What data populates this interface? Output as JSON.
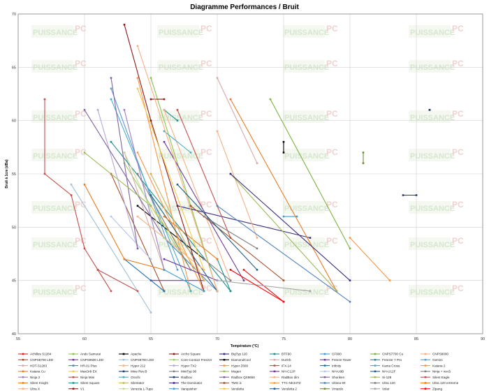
{
  "chart_data": {
    "type": "line",
    "title": "Diagramme Performances / Bruit",
    "xlabel": "Température (°C)",
    "ylabel": "Bruit à 1cm (dBa)",
    "xlim": [
      55,
      90
    ],
    "ylim": [
      40,
      70
    ],
    "xticks": [
      "55",
      "60",
      "65",
      "70",
      "75",
      "80",
      "85",
      "90"
    ],
    "yticks": [
      "40",
      "45",
      "50",
      "55",
      "60",
      "65",
      "70"
    ],
    "grid": true,
    "legend_position": "bottom",
    "watermark": {
      "brand": "PUISSANCE",
      "accent": "PC"
    },
    "series": [
      {
        "name": "Achilles S1284",
        "color": "#e31a1c",
        "values": [
          [
            72,
            46
          ],
          [
            75,
            43
          ]
        ]
      },
      {
        "name": "Ando Samurai",
        "color": "#8bc34a",
        "values": [
          [
            65,
            64
          ],
          [
            70,
            44
          ]
        ]
      },
      {
        "name": "Apache",
        "color": "#000000",
        "values": [
          [
            75,
            58
          ],
          [
            75,
            57
          ]
        ]
      },
      {
        "name": "Archo Square",
        "color": "#8b1a1a",
        "values": [
          [
            65,
            62
          ],
          [
            66,
            62
          ]
        ]
      },
      {
        "name": "BigTyp 120",
        "color": "#3b2b7a",
        "values": [
          [
            67,
            52
          ],
          [
            77,
            49
          ]
        ]
      },
      {
        "name": "BTF90",
        "color": "#1e8f8f",
        "values": [
          [
            66,
            61
          ],
          [
            67,
            60
          ]
        ]
      },
      {
        "name": "CF900",
        "color": "#3c9fd6",
        "values": [
          [
            75,
            51
          ],
          [
            76,
            51
          ]
        ]
      },
      {
        "name": "CNPS7700 Cu",
        "color": "#7cb342",
        "values": [
          [
            74,
            62
          ],
          [
            80,
            48
          ]
        ]
      },
      {
        "name": "CNPS8000",
        "color": "#f4b183",
        "values": [
          [
            66,
            61
          ],
          [
            71,
            45
          ]
        ]
      },
      {
        "name": "CNPS8700 LED",
        "color": "#a0522d",
        "values": [
          [
            62,
            55
          ],
          [
            66,
            44
          ]
        ]
      },
      {
        "name": "CNPS9500 LED",
        "color": "#6a3d9a",
        "values": [
          [
            65,
            45
          ],
          [
            69,
            45
          ]
        ]
      },
      {
        "name": "CNPS9700 LED",
        "color": "#9ec0d8",
        "values": [
          [
            59,
            54
          ],
          [
            65,
            42
          ]
        ]
      },
      {
        "name": "Core-Contact Freezer",
        "color": "#9ccc65",
        "values": [
          [
            63,
            56
          ],
          [
            68,
            46
          ]
        ]
      },
      {
        "name": "DiamondCool",
        "color": "#000000",
        "values": [
          [
            64,
            52
          ],
          [
            69,
            47
          ]
        ]
      },
      {
        "name": "DuOrb",
        "color": "#d7a8a8",
        "values": [
          [
            63,
            57
          ],
          [
            66,
            46
          ]
        ]
      },
      {
        "name": "Freeze Tower",
        "color": "#6a3d9a",
        "values": [
          [
            66,
            58
          ],
          [
            72,
            45
          ]
        ]
      },
      {
        "name": "Freezer 7 Pro",
        "color": "#1e8f8f",
        "values": [
          [
            62,
            58
          ],
          [
            71,
            44
          ]
        ]
      },
      {
        "name": "Gemini",
        "color": "#5b9bd5",
        "values": [
          [
            62,
            63
          ],
          [
            67,
            46
          ]
        ]
      },
      {
        "name": "HDT-S1283",
        "color": "#d7a8a8",
        "values": [
          [
            70,
            64
          ],
          [
            73,
            56
          ]
        ]
      },
      {
        "name": "HR-01 Plus",
        "color": "#4f81bd",
        "values": [
          [
            66,
            49
          ],
          [
            70,
            44
          ]
        ]
      },
      {
        "name": "Hyper 212",
        "color": "#f4b183",
        "values": [
          [
            70,
            59
          ],
          [
            73,
            49
          ]
        ]
      },
      {
        "name": "Hyper TX2",
        "color": "#b4a7d6",
        "values": [
          [
            61,
            61
          ],
          [
            64,
            48
          ]
        ]
      },
      {
        "name": "Hyper Z600",
        "color": "#f79646",
        "values": [
          [
            64,
            64
          ],
          [
            68,
            44
          ]
        ]
      },
      {
        "name": "IFX-14",
        "color": "#c0504d",
        "values": [
          [
            61,
            46
          ],
          [
            64,
            44
          ]
        ]
      },
      {
        "name": "Infinity",
        "color": "#1f6fb2",
        "values": [
          [
            63,
            47
          ],
          [
            66,
            44
          ]
        ]
      },
      {
        "name": "Kama Cross",
        "color": "#4bacc6",
        "values": [
          [
            62,
            62
          ],
          [
            68,
            44
          ]
        ]
      },
      {
        "name": "Katana 2",
        "color": "#f79646",
        "values": [
          [
            64,
            57
          ],
          [
            69,
            44
          ]
        ]
      },
      {
        "name": "Katana Cu",
        "color": "#e67e22",
        "values": [
          [
            71,
            62
          ],
          [
            79,
            44
          ]
        ]
      },
      {
        "name": "MaxOrb EX",
        "color": "#f2c94c",
        "values": [
          [
            65,
            52
          ],
          [
            69,
            45
          ]
        ]
      },
      {
        "name": "Mine Rev.B",
        "color": "#1f3b6f",
        "values": [
          [
            84,
            53
          ],
          [
            85,
            53
          ]
        ]
      },
      {
        "name": "MiniTyp 90",
        "color": "#808080",
        "values": [
          [
            69,
            47
          ],
          [
            71,
            45
          ]
        ]
      },
      {
        "name": "Mugen",
        "color": "#9bbb59",
        "values": [
          [
            71,
            55
          ],
          [
            79,
            44
          ]
        ]
      },
      {
        "name": "NH-C12P",
        "color": "#7030a0",
        "values": [
          [
            66,
            47
          ],
          [
            70,
            45
          ]
        ]
      },
      {
        "name": "NH-U9B",
        "color": "#b4c7e7",
        "values": [
          [
            62,
            51
          ],
          [
            65,
            47
          ]
        ]
      },
      {
        "name": "NH-U12F",
        "color": "#1f5f8b",
        "values": [
          [
            65,
            53
          ],
          [
            70,
            44
          ]
        ]
      },
      {
        "name": "Ninja + rev.B",
        "color": "#7f7f7f",
        "values": [
          [
            64,
            55
          ],
          [
            68,
            46
          ]
        ]
      },
      {
        "name": "Ninja 2",
        "color": "#9e7fbf",
        "values": [
          [
            63,
            61
          ],
          [
            66,
            46
          ]
        ]
      },
      {
        "name": "Ninja Mini",
        "color": "#c0504d",
        "values": [
          [
            67,
            61
          ],
          [
            71,
            49
          ]
        ]
      },
      {
        "name": "Orochi",
        "color": "#4bacc6",
        "values": [
          [
            66,
            59
          ],
          [
            68,
            57
          ]
        ]
      },
      {
        "name": "Radbox",
        "color": "#1f3b6f",
        "values": [
          [
            86,
            61
          ],
          [
            86,
            61
          ]
        ]
      },
      {
        "name": "Radbox QX9650",
        "color": "#8064a2",
        "values": [
          [
            60,
            61
          ],
          [
            66,
            49
          ]
        ]
      },
      {
        "name": "RadBox dim",
        "color": "#f4b183",
        "values": [
          [
            64,
            67
          ],
          [
            70,
            44
          ]
        ]
      },
      {
        "name": "Shuriken",
        "color": "#8064a2",
        "values": [
          [
            62,
            64
          ],
          [
            64,
            48
          ]
        ]
      },
      {
        "name": "Si-128",
        "color": "#9bbb59",
        "values": [
          [
            60,
            57
          ],
          [
            65,
            52
          ]
        ]
      },
      {
        "name": "Silent Eagle",
        "color": "#c0504d",
        "values": [
          [
            57,
            62
          ],
          [
            57,
            55
          ],
          [
            59,
            53
          ],
          [
            60,
            48
          ],
          [
            61,
            46
          ],
          [
            62,
            44
          ]
        ]
      },
      {
        "name": "Silent Knight",
        "color": "#e67e22",
        "values": [
          [
            60,
            54
          ],
          [
            63,
            47
          ],
          [
            66,
            46
          ]
        ]
      },
      {
        "name": "Silent Square",
        "color": "#1e8f8f",
        "values": [
          [
            70,
            47
          ],
          [
            71,
            44
          ]
        ]
      },
      {
        "name": "Silentator",
        "color": "#c9b458",
        "values": [
          [
            65,
            55
          ],
          [
            69,
            45
          ]
        ]
      },
      {
        "name": "The Dominator",
        "color": "#3b2b7a",
        "values": [
          [
            71,
            55
          ],
          [
            80,
            45
          ]
        ]
      },
      {
        "name": "TMG i1",
        "color": "#a0522d",
        "values": [
          [
            68,
            52
          ],
          [
            75,
            45
          ]
        ]
      },
      {
        "name": "TTC-NK34TZ",
        "color": "#f79646",
        "values": [
          [
            80,
            49
          ],
          [
            83,
            45
          ]
        ]
      },
      {
        "name": "Ultima 90",
        "color": "#4f81bd",
        "values": [
          [
            70,
            52
          ],
          [
            80,
            43
          ]
        ]
      },
      {
        "name": "Ultra 120",
        "color": "#7f7f7f",
        "values": [
          [
            69,
            51
          ],
          [
            73,
            48
          ]
        ]
      },
      {
        "name": "Ultra 120 eXtreme",
        "color": "#e67e22",
        "values": [
          [
            66,
            51
          ],
          [
            70,
            47
          ]
        ]
      },
      {
        "name": "Ultra X",
        "color": "#f4b183",
        "values": [
          [
            64,
            51
          ],
          [
            69,
            46
          ]
        ]
      },
      {
        "name": "V1",
        "color": "#8b1a1a",
        "values": [
          [
            63,
            69
          ],
          [
            65,
            60
          ],
          [
            69,
            44
          ]
        ]
      },
      {
        "name": "Venezia L-Tupe",
        "color": "#c4d79b",
        "values": [
          [
            63,
            57
          ],
          [
            66,
            49
          ]
        ]
      },
      {
        "name": "Vanquisher",
        "color": "#3c9fd6",
        "values": [
          [
            66,
            46
          ],
          [
            69,
            44
          ]
        ]
      },
      {
        "name": "Vendetta",
        "color": "#f2c94c",
        "values": [
          [
            64,
            63
          ],
          [
            69,
            46
          ]
        ]
      },
      {
        "name": "Vendetta 2",
        "color": "#1f5f8b",
        "values": [
          [
            67,
            54
          ],
          [
            73,
            46
          ]
        ]
      },
      {
        "name": "Vmardo",
        "color": "#6e8b3d",
        "values": [
          [
            81,
            57
          ],
          [
            81,
            56
          ]
        ]
      },
      {
        "name": "Volar",
        "color": "#a6a6a6",
        "values": [
          [
            70,
            45
          ],
          [
            77,
            44
          ]
        ]
      },
      {
        "name": "Zipang",
        "color": "#ff0000",
        "values": [
          [
            71,
            46
          ],
          [
            75,
            43
          ]
        ]
      }
    ]
  }
}
